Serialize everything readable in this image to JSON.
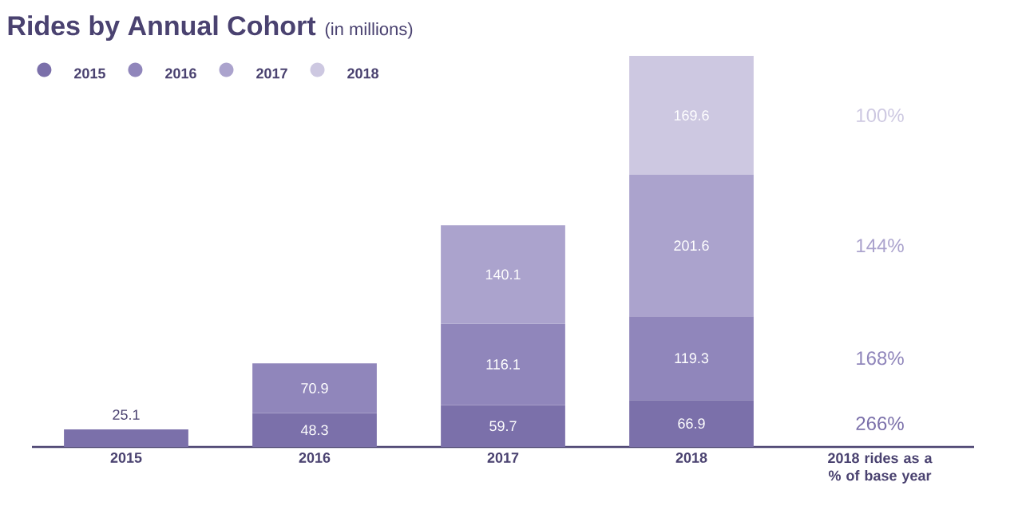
{
  "chart_data": {
    "type": "bar",
    "stacked": true,
    "data_labels": true,
    "legend": "top left",
    "title": "Rides by Annual Cohort",
    "subtitle": "(in millions)",
    "categories": [
      "2015",
      "2016",
      "2017",
      "2018",
      "2018 rides as a % of base year"
    ],
    "series": [
      {
        "name": "2015",
        "color": "#7b70aa",
        "values": [
          25.1,
          48.3,
          59.7,
          66.9,
          null
        ]
      },
      {
        "name": "2016",
        "color": "#9086bb",
        "values": [
          null,
          70.9,
          116.1,
          119.3,
          null
        ]
      },
      {
        "name": "2017",
        "color": "#aba3cd",
        "values": [
          null,
          null,
          140.1,
          201.6,
          null
        ]
      },
      {
        "name": "2018",
        "color": "#cdc8e1",
        "values": [
          null,
          null,
          null,
          169.6,
          null
        ]
      }
    ],
    "annotations": [
      "100%",
      "144%",
      "168%",
      "266%"
    ]
  }
}
